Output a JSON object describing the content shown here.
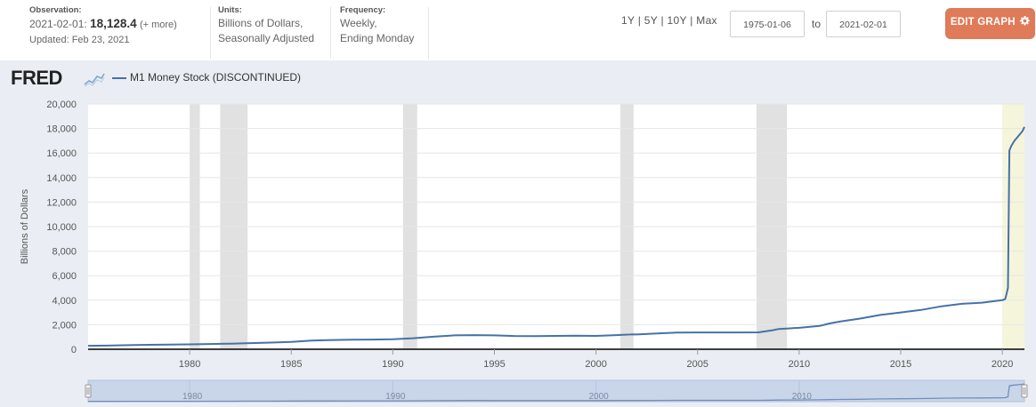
{
  "header": {
    "observation": {
      "label": "Observation:",
      "date_prefix": "2021-02-01:",
      "value": "18,128.4",
      "more": "(+ more)",
      "updated": "Updated: Feb 23, 2021"
    },
    "units": {
      "label": "Units:",
      "line1": "Billions of Dollars,",
      "line2": "Seasonally Adjusted"
    },
    "frequency": {
      "label": "Frequency:",
      "line1": "Weekly,",
      "line2": "Ending Monday"
    },
    "range_buttons": [
      "1Y",
      "5Y",
      "10Y",
      "Max"
    ],
    "range_sep": "|",
    "start_date": "1975-01-06",
    "to_label": "to",
    "end_date": "2021-02-01",
    "edit_label": "EDIT GRAPH"
  },
  "logo": {
    "text": "FRED"
  },
  "colors": {
    "series": "#4572a7",
    "recession": "#e1e1e1",
    "highlight": "#f5f5dc",
    "edit_button": "#df7b58",
    "chart_background": "#eaeef4"
  },
  "chart_data": {
    "type": "line",
    "series": [
      {
        "name": "M1 Money Stock (DISCONTINUED)",
        "x": [
          1975.0,
          1976.0,
          1977.0,
          1978.0,
          1979.0,
          1980.0,
          1981.0,
          1982.0,
          1983.0,
          1984.0,
          1985.0,
          1986.0,
          1987.0,
          1988.0,
          1989.0,
          1990.0,
          1991.0,
          1992.0,
          1993.0,
          1994.0,
          1995.0,
          1996.0,
          1997.0,
          1998.0,
          1999.0,
          2000.0,
          2001.0,
          2001.7,
          2001.8,
          2002.0,
          2003.0,
          2004.0,
          2005.0,
          2006.0,
          2007.0,
          2008.0,
          2008.7,
          2009.0,
          2010.0,
          2011.0,
          2011.5,
          2012.0,
          2013.0,
          2014.0,
          2015.0,
          2016.0,
          2017.0,
          2018.0,
          2019.0,
          2020.0,
          2020.15,
          2020.28,
          2020.35,
          2020.45,
          2020.6,
          2020.8,
          2021.0,
          2021.09
        ],
        "values": [
          280,
          300,
          330,
          360,
          380,
          400,
          430,
          460,
          500,
          540,
          600,
          700,
          750,
          780,
          790,
          820,
          900,
          1020,
          1130,
          1150,
          1130,
          1080,
          1070,
          1090,
          1110,
          1090,
          1150,
          1200,
          1220,
          1200,
          1280,
          1360,
          1370,
          1370,
          1370,
          1380,
          1550,
          1650,
          1750,
          1900,
          2100,
          2250,
          2500,
          2800,
          3000,
          3200,
          3500,
          3700,
          3800,
          4000,
          4100,
          5000,
          16200,
          16600,
          17000,
          17400,
          17800,
          18128.4
        ]
      }
    ],
    "xlim": [
      1975.0,
      2021.09
    ],
    "ylim": [
      0,
      20000
    ],
    "x_ticks": [
      1980,
      1985,
      1990,
      1995,
      2000,
      2005,
      2010,
      2015,
      2020
    ],
    "y_ticks": [
      0,
      2000,
      4000,
      6000,
      8000,
      10000,
      12000,
      14000,
      16000,
      18000,
      20000
    ],
    "y_tick_labels": [
      "0",
      "2,000",
      "4,000",
      "6,000",
      "8,000",
      "10,000",
      "12,000",
      "14,000",
      "16,000",
      "18,000",
      "20,000"
    ],
    "ylabel": "Billions of Dollars",
    "xlabel": "",
    "grid": true,
    "legend_position": "top-left",
    "recessions": [
      [
        1980.0,
        1980.5
      ],
      [
        1981.5,
        1982.85
      ],
      [
        1990.5,
        1991.2
      ],
      [
        2001.2,
        2001.85
      ],
      [
        2007.9,
        2009.4
      ]
    ],
    "highlight_range": [
      2020.0,
      2021.09
    ],
    "navigator_ticks": [
      1980,
      1990,
      2000,
      2010
    ]
  }
}
